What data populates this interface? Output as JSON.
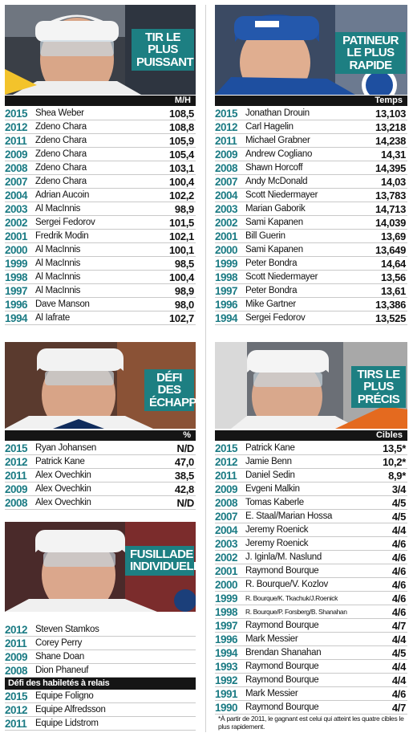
{
  "hardest_shot": {
    "title": "TIR LE PLUS PUISSANT",
    "unit": "M/H",
    "rows": [
      {
        "year": "2015",
        "name": "Shea Weber",
        "value": "108,5"
      },
      {
        "year": "2012",
        "name": "Zdeno Chara",
        "value": "108,8"
      },
      {
        "year": "2011",
        "name": "Zdeno Chara",
        "value": "105,9"
      },
      {
        "year": "2009",
        "name": "Zdeno Chara",
        "value": "105,4"
      },
      {
        "year": "2008",
        "name": "Zdeno Chara",
        "value": "103,1"
      },
      {
        "year": "2007",
        "name": "Zdeno Chara",
        "value": "100,4"
      },
      {
        "year": "2004",
        "name": "Adrian Aucoin",
        "value": "102,2"
      },
      {
        "year": "2003",
        "name": "Al MacInnis",
        "value": "98,9"
      },
      {
        "year": "2002",
        "name": "Sergei Fedorov",
        "value": "101,5"
      },
      {
        "year": "2001",
        "name": "Fredrik Modin",
        "value": "102,1"
      },
      {
        "year": "2000",
        "name": "Al MacInnis",
        "value": "100,1"
      },
      {
        "year": "1999",
        "name": "Al MacInnis",
        "value": "98,5"
      },
      {
        "year": "1998",
        "name": "Al MacInnis",
        "value": "100,4"
      },
      {
        "year": "1997",
        "name": "Al MacInnis",
        "value": "98,9"
      },
      {
        "year": "1996",
        "name": "Dave Manson",
        "value": "98,0"
      },
      {
        "year": "1994",
        "name": "Al Iafrate",
        "value": "102,7"
      }
    ]
  },
  "fastest_skater": {
    "title": "PATINEUR LE PLUS RAPIDE",
    "unit": "Temps",
    "rows": [
      {
        "year": "2015",
        "name": "Jonathan Drouin",
        "value": "13,103"
      },
      {
        "year": "2012",
        "name": "Carl Hagelin",
        "value": "13,218"
      },
      {
        "year": "2011",
        "name": "Michael Grabner",
        "value": "14,238"
      },
      {
        "year": "2009",
        "name": "Andrew Cogliano",
        "value": "14,31"
      },
      {
        "year": "2008",
        "name": "Shawn Horcoff",
        "value": "14,395"
      },
      {
        "year": "2007",
        "name": "Andy McDonald",
        "value": "14,03"
      },
      {
        "year": "2004",
        "name": "Scott Niedermayer",
        "value": "13,783"
      },
      {
        "year": "2003",
        "name": "Marian Gaborik",
        "value": "14,713"
      },
      {
        "year": "2002",
        "name": "Sami Kapanen",
        "value": "14,039"
      },
      {
        "year": "2001",
        "name": "Bill Guerin",
        "value": "13,69"
      },
      {
        "year": "2000",
        "name": "Sami Kapanen",
        "value": "13,649"
      },
      {
        "year": "1999",
        "name": "Peter Bondra",
        "value": "14,64"
      },
      {
        "year": "1998",
        "name": "Scott Niedermayer",
        "value": "13,56"
      },
      {
        "year": "1997",
        "name": "Peter Bondra",
        "value": "13,61"
      },
      {
        "year": "1996",
        "name": "Mike Gartner",
        "value": "13,386"
      },
      {
        "year": "1994",
        "name": "Sergei Fedorov",
        "value": "13,525"
      }
    ]
  },
  "breakaway": {
    "title": "DÉFI DES ÉCHAPPÉS",
    "unit": "%",
    "rows": [
      {
        "year": "2015",
        "name": "Ryan Johansen",
        "value": "N/D"
      },
      {
        "year": "2012",
        "name": "Patrick Kane",
        "value": "47,0"
      },
      {
        "year": "2011",
        "name": "Alex Ovechkin",
        "value": "38,5"
      },
      {
        "year": "2009",
        "name": "Alex Ovechkin",
        "value": "42,8"
      },
      {
        "year": "2008",
        "name": "Alex Ovechkin",
        "value": "N/D"
      }
    ]
  },
  "shootout": {
    "title": "FUSILLADE INDIVIDUELLE",
    "rows": [
      {
        "year": "2012",
        "name": "Steven Stamkos"
      },
      {
        "year": "2011",
        "name": "Corey Perry"
      },
      {
        "year": "2009",
        "name": "Shane Doan"
      },
      {
        "year": "2008",
        "name": "Dion Phaneuf"
      }
    ],
    "relay_title": "Défi des habiletés à relais",
    "relay_rows": [
      {
        "year": "2015",
        "name": "Équipe Foligno"
      },
      {
        "year": "2012",
        "name": "Équipe Alfredsson"
      },
      {
        "year": "2011",
        "name": "Équipe Lidstrom"
      }
    ]
  },
  "accuracy": {
    "title": "TIRS LE PLUS PRÉCIS",
    "unit": "Cibles",
    "rows": [
      {
        "year": "2015",
        "name": "Patrick Kane",
        "value": "13,5*"
      },
      {
        "year": "2012",
        "name": "Jamie Benn",
        "value": "10,2*"
      },
      {
        "year": "2011",
        "name": "Daniel Sedin",
        "value": "8,9*"
      },
      {
        "year": "2009",
        "name": "Evgeni Malkin",
        "value": "3/4"
      },
      {
        "year": "2008",
        "name": "Tomas Kaberle",
        "value": "4/5"
      },
      {
        "year": "2007",
        "name": "E. Staal/Marian Hossa",
        "value": "4/5"
      },
      {
        "year": "2004",
        "name": "Jeremy Roenick",
        "value": "4/4"
      },
      {
        "year": "2003",
        "name": "Jeremy Roenick",
        "value": "4/6"
      },
      {
        "year": "2002",
        "name": "J. Iginla/M. Naslund",
        "value": "4/6"
      },
      {
        "year": "2001",
        "name": "Raymond Bourque",
        "value": "4/6"
      },
      {
        "year": "2000",
        "name": "R. Bourque/V. Kozlov",
        "value": "4/6"
      },
      {
        "year": "1999",
        "name": "R. Bourque/K. Tkachuk/J.Roenick",
        "value": "4/6",
        "small": true
      },
      {
        "year": "1998",
        "name": "R. Bourque/P. Forsberg/B. Shanahan",
        "value": "4/6",
        "small": true
      },
      {
        "year": "1997",
        "name": "Raymond Bourque",
        "value": "4/7"
      },
      {
        "year": "1996",
        "name": "Mark Messier",
        "value": "4/4"
      },
      {
        "year": "1994",
        "name": "Brendan Shanahan",
        "value": "4/5"
      },
      {
        "year": "1993",
        "name": "Raymond Bourque",
        "value": "4/4"
      },
      {
        "year": "1992",
        "name": "Raymond Bourque",
        "value": "4/4"
      },
      {
        "year": "1991",
        "name": "Mark Messier",
        "value": "4/6"
      },
      {
        "year": "1990",
        "name": "Raymond Bourque",
        "value": "4/7"
      }
    ],
    "footnote": "*À partir de 2011, le gagnant est celui qui atteint les quatre cibles le plus rapidement."
  },
  "colors": {
    "accent": "#1d7f82",
    "year": "#1b7b84",
    "header": "#151515"
  }
}
